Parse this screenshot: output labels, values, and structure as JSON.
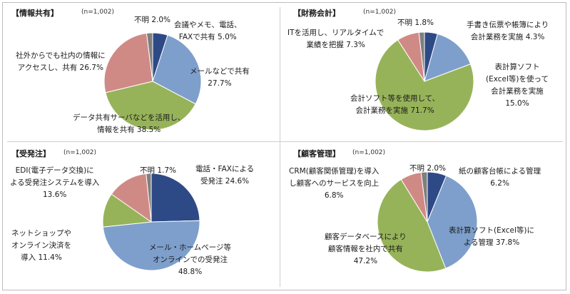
{
  "chart_data": [
    {
      "type": "pie",
      "title": "【情報共有】",
      "n_label": "(n=1,002)",
      "slices": [
        {
          "lines": [
            "会議やメモ、電話、",
            "FAXで共有 5.0%"
          ],
          "value": 5.0,
          "color": "#2e4a86"
        },
        {
          "lines": [
            "メールなどで共有",
            "27.7%"
          ],
          "value": 27.7,
          "color": "#7e9fcb"
        },
        {
          "lines": [
            "データ共有サーバなどを活用し、",
            "情報を共有 38.5%"
          ],
          "value": 38.5,
          "color": "#97b35a"
        },
        {
          "lines": [
            "社外からでも社内の情報に",
            "アクセスし、共有 26.7%"
          ],
          "value": 26.7,
          "color": "#d08a86"
        },
        {
          "lines": [
            "不明 2.0%"
          ],
          "value": 2.0,
          "color": "#7f7f7f"
        }
      ]
    },
    {
      "type": "pie",
      "title": "【財務会計】",
      "n_label": "(n=1,002)",
      "slices": [
        {
          "lines": [
            "手書き伝票や帳簿により",
            "会計業務を実施 4.3%"
          ],
          "value": 4.3,
          "color": "#2e4a86"
        },
        {
          "lines": [
            "表計算ソフト",
            "(Excel等)を使って",
            "会計業務を実施",
            "15.0%"
          ],
          "value": 15.0,
          "color": "#7e9fcb"
        },
        {
          "lines": [
            "会計ソフト等を使用して、",
            "会計業務を実施 71.7%"
          ],
          "value": 71.7,
          "color": "#97b35a"
        },
        {
          "lines": [
            "ITを活用し、リアルタイムで",
            "業績を把握 7.3%"
          ],
          "value": 7.3,
          "color": "#d08a86"
        },
        {
          "lines": [
            "不明 1.8%"
          ],
          "value": 1.8,
          "color": "#7f7f7f"
        }
      ]
    },
    {
      "type": "pie",
      "title": "【受発注】",
      "n_label": "(n=1,002)",
      "slices": [
        {
          "lines": [
            "電話・FAXによる",
            "受発注 24.6%"
          ],
          "value": 24.6,
          "color": "#2e4a86"
        },
        {
          "lines": [
            "メール・ホームページ等",
            "オンラインでの受発注",
            "48.8%"
          ],
          "value": 48.8,
          "color": "#7e9fcb"
        },
        {
          "lines": [
            "ネットショップや",
            "オンライン決済を",
            "導入 11.4%"
          ],
          "value": 11.4,
          "color": "#97b35a"
        },
        {
          "lines": [
            "EDI(電子データ交換)に",
            "よる受発注システムを導入",
            "13.6%"
          ],
          "value": 13.6,
          "color": "#d08a86"
        },
        {
          "lines": [
            "不明 1.7%"
          ],
          "value": 1.7,
          "color": "#7f7f7f"
        }
      ]
    },
    {
      "type": "pie",
      "title": "【顧客管理】",
      "n_label": "(n=1,002)",
      "slices": [
        {
          "lines": [
            "紙の顧客台帳による管理",
            "6.2%"
          ],
          "value": 6.2,
          "color": "#2e4a86"
        },
        {
          "lines": [
            "表計算ソフト(Excel等)に",
            "よる管理 37.8%"
          ],
          "value": 37.8,
          "color": "#7e9fcb"
        },
        {
          "lines": [
            "顧客データベースにより",
            "顧客情報を社内で共有",
            "47.2%"
          ],
          "value": 47.2,
          "color": "#97b35a"
        },
        {
          "lines": [
            "CRM(顧客関係管理)を導入",
            "し顧客へのサービスを向上",
            "6.8%"
          ],
          "value": 6.8,
          "color": "#d08a86"
        },
        {
          "lines": [
            "不明 2.0%"
          ],
          "value": 2.0,
          "color": "#7f7f7f"
        }
      ]
    }
  ]
}
